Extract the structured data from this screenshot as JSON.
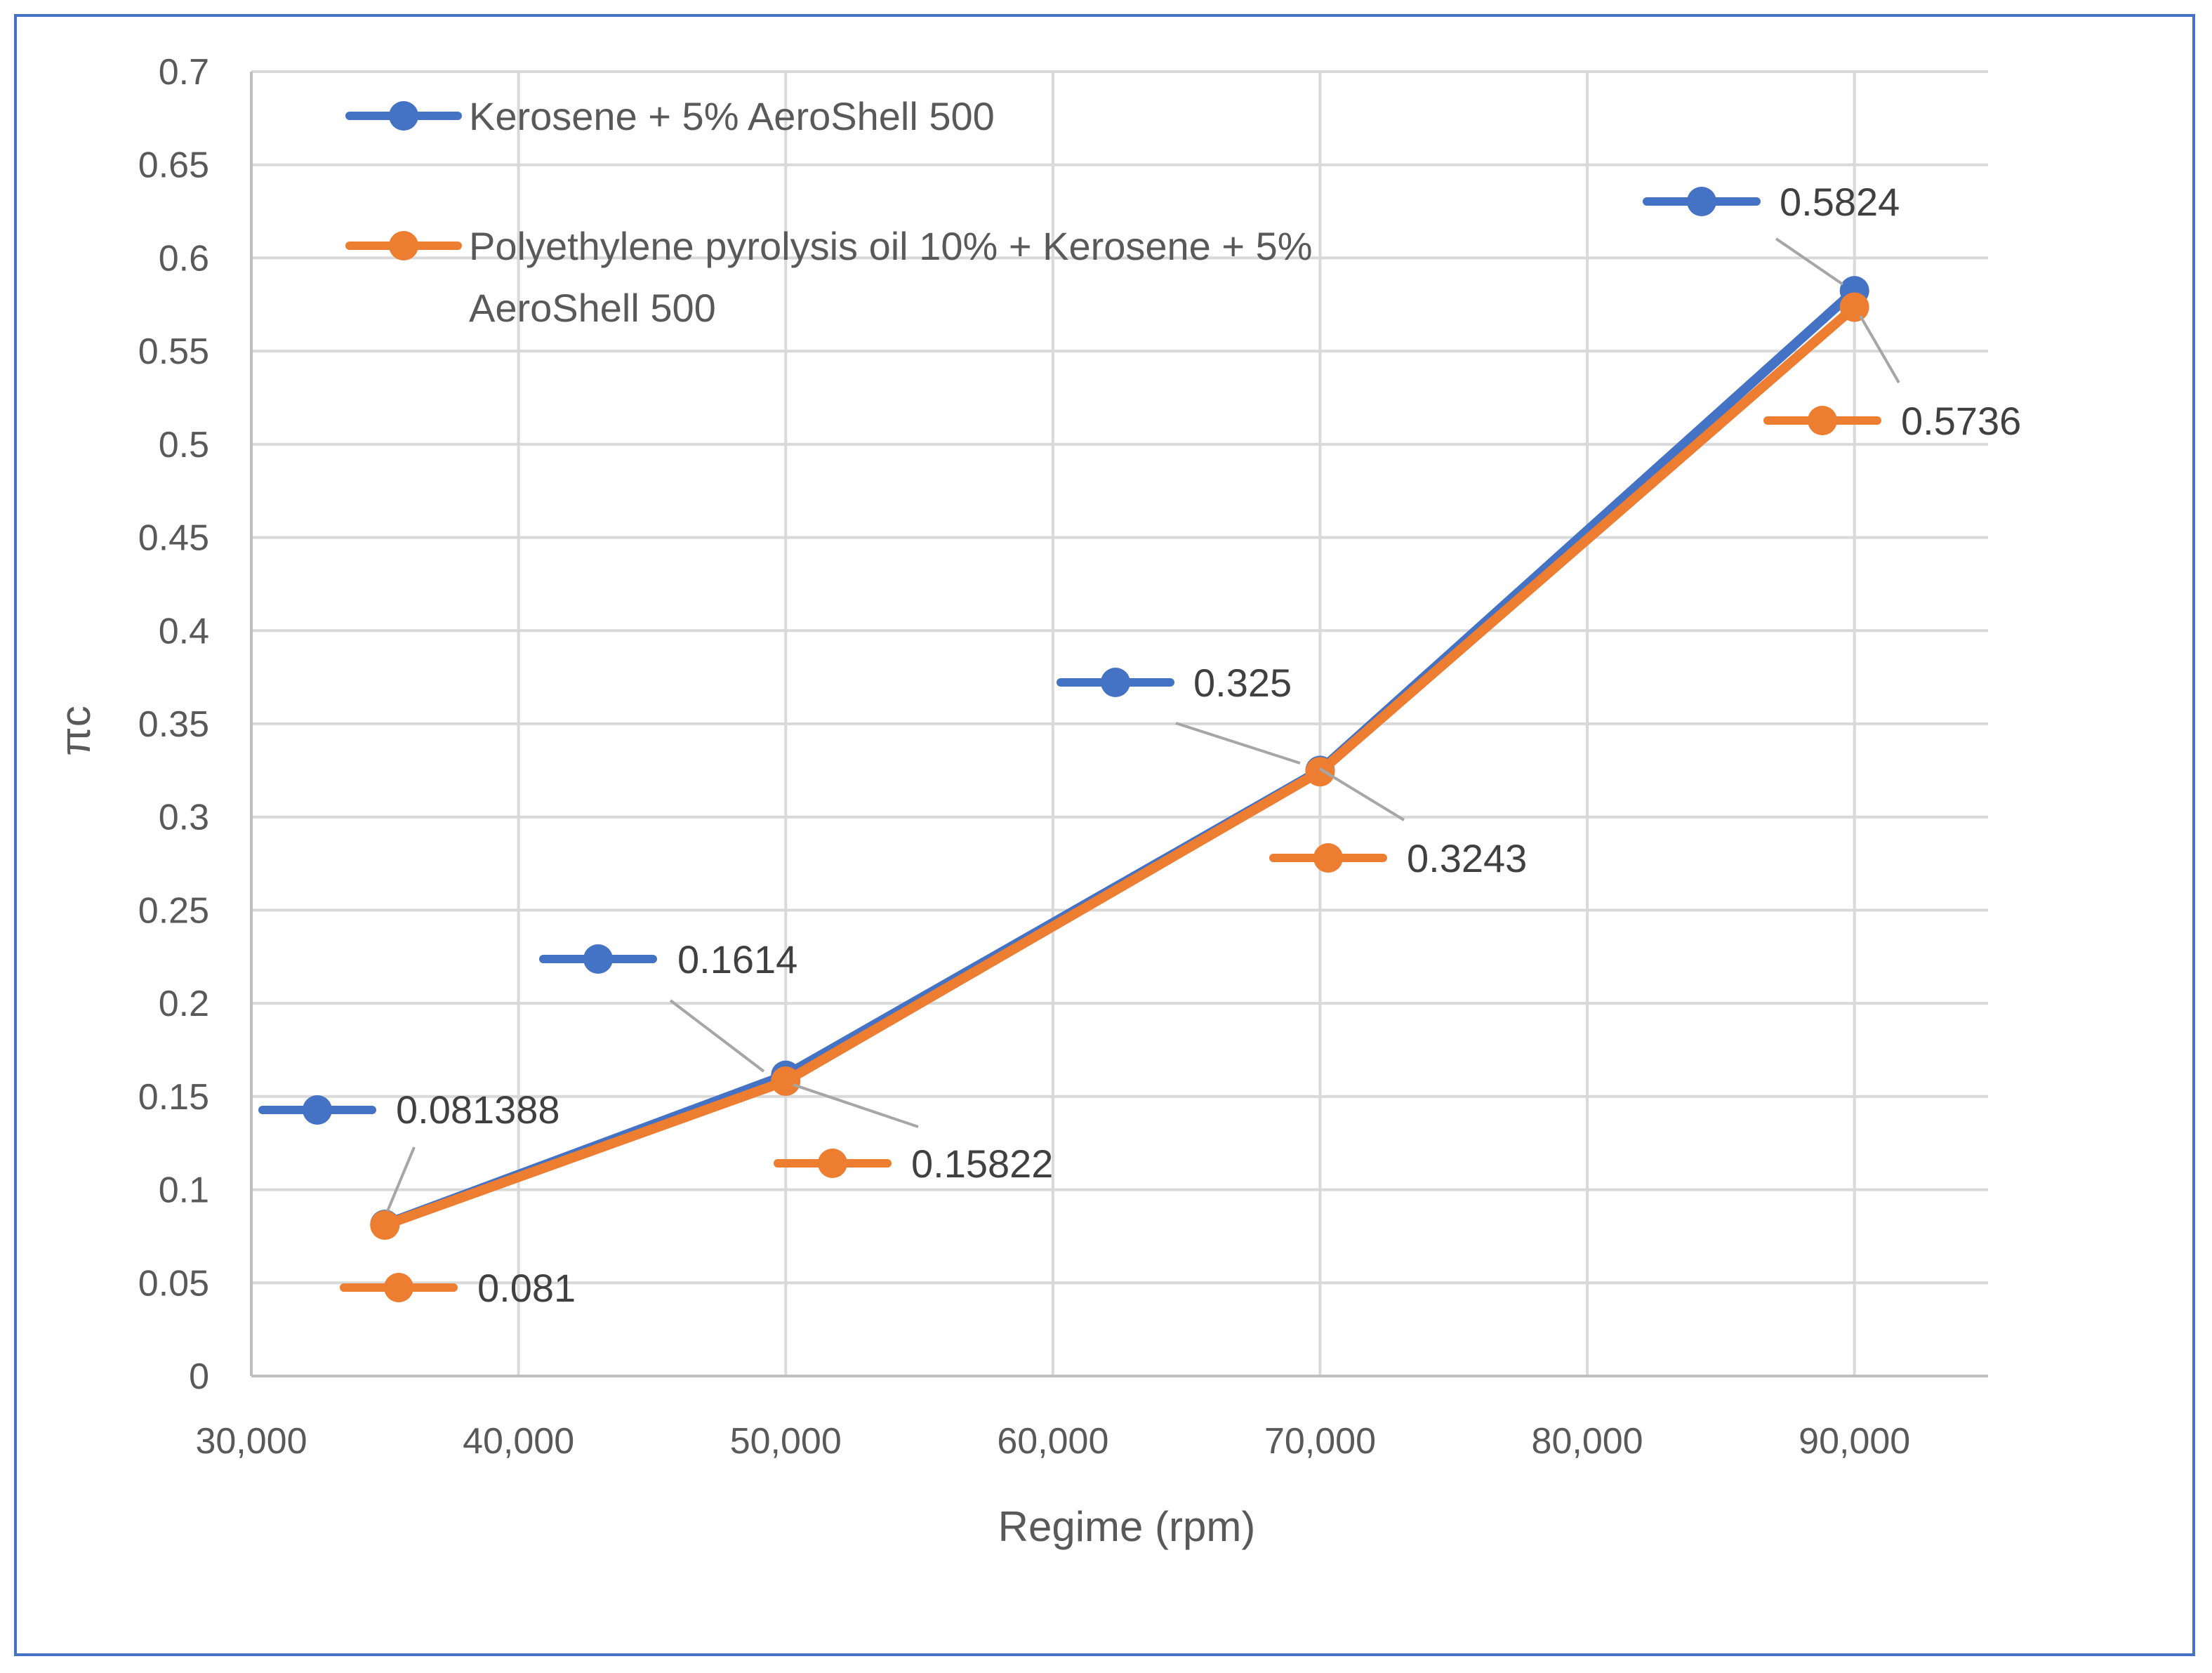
{
  "chart_data": {
    "type": "line",
    "title": "",
    "xlabel": "Regime (rpm)",
    "ylabel": "πc",
    "xlim": [
      30000,
      95000
    ],
    "ylim": [
      0,
      0.7
    ],
    "x_ticks": [
      30000,
      40000,
      50000,
      60000,
      70000,
      80000,
      90000
    ],
    "x_tick_labels": [
      "30,000",
      "40,000",
      "50,000",
      "60,000",
      "70,000",
      "80,000",
      "90,000"
    ],
    "y_ticks": [
      0,
      0.05,
      0.1,
      0.15,
      0.2,
      0.25,
      0.3,
      0.35,
      0.4,
      0.45,
      0.5,
      0.55,
      0.6,
      0.65,
      0.7
    ],
    "y_tick_labels": [
      "0",
      "0.05",
      "0.1",
      "0.15",
      "0.2",
      "0.25",
      "0.3",
      "0.35",
      "0.4",
      "0.45",
      "0.5",
      "0.55",
      "0.6",
      "0.65",
      "0.7"
    ],
    "grid": true,
    "legend_position": "top-left",
    "x": [
      35000,
      50000,
      70000,
      90000
    ],
    "series": [
      {
        "name": "Kerosene + 5% AeroShell 500",
        "legend_lines": [
          "Kerosene + 5% AeroShell 500"
        ],
        "color": "#4472C4",
        "values": [
          0.081388,
          0.1614,
          0.325,
          0.5824
        ],
        "data_labels": [
          "0.081388",
          "0.1614",
          "0.325",
          "0.5824"
        ]
      },
      {
        "name": "Polyethylene pyrolysis oil 10% + Kerosene + 5% AeroShell 500",
        "legend_lines": [
          "Polyethylene pyrolysis oil 10% + Kerosene + 5%",
          "AeroShell 500"
        ],
        "color": "#ED7D31",
        "values": [
          0.081,
          0.15822,
          0.3243,
          0.5736
        ],
        "data_labels": [
          "0.081",
          "0.15822",
          "0.3243",
          "0.5736"
        ]
      }
    ]
  },
  "colors": {
    "frame": "#4472C4",
    "grid": "#D9D9D9",
    "axis": "#BFBFBF",
    "text": "#595959",
    "leader": "#A6A6A6"
  }
}
